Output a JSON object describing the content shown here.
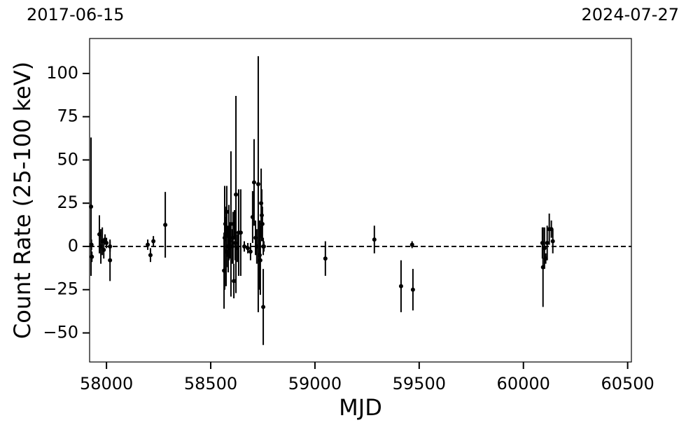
{
  "chart_data": {
    "type": "errorbar",
    "annotations": [
      "2017-06-15",
      "2024-07-27"
    ],
    "x_label": "MJD",
    "y_label": "Count Rate (25-100 keV)",
    "xlim": [
      57919,
      60518
    ],
    "ylim": [
      -66.8,
      120.2
    ],
    "xticks": [
      58000,
      58500,
      59000,
      59500,
      60000,
      60500
    ],
    "yticks": [
      {
        "value": -50,
        "label": "−50"
      },
      {
        "value": -25,
        "label": "−25"
      },
      0,
      25,
      50,
      75,
      100
    ],
    "reference_line": 0,
    "color": "#000000",
    "series": [
      {
        "name": "data",
        "x": [
          57926,
          57928,
          57930,
          57966,
          57973,
          57980,
          57987,
          57993,
          58000,
          58017,
          58017,
          58198,
          58211,
          58225,
          58282,
          58564,
          58567,
          58570,
          58574,
          58577,
          58581,
          58584,
          58587,
          58591,
          58597,
          58604,
          58607,
          58611,
          58614,
          58617,
          58621,
          58628,
          58634,
          58644,
          58661,
          58678,
          58691,
          58701,
          58708,
          58715,
          58721,
          58728,
          58735,
          58738,
          58742,
          58745,
          58748,
          58752,
          58752,
          58755,
          59050,
          59285,
          59413,
          59466,
          59470,
          60091,
          60094,
          60101,
          60107,
          60114,
          60124,
          60134,
          60141
        ],
        "values": [
          23,
          1,
          -6,
          7,
          0,
          3,
          -2,
          4,
          2,
          0,
          -8,
          1,
          -5,
          3,
          12.5,
          -14,
          5,
          13,
          -3,
          20,
          0,
          -5,
          8,
          3,
          13,
          0,
          5,
          -20,
          13,
          2,
          30,
          -1,
          8,
          8,
          0,
          -1,
          -3,
          17,
          37,
          5,
          0,
          36,
          -5,
          -8,
          25,
          18,
          13,
          -35,
          0,
          0,
          -7,
          4,
          -23,
          1,
          -25,
          2,
          -12,
          -1,
          -7,
          2,
          10,
          10,
          3
        ],
        "errors": [
          40,
          3,
          3,
          11,
          10,
          8,
          5,
          3,
          3,
          3,
          12,
          3,
          4,
          3,
          19,
          22,
          30,
          10,
          20,
          15,
          12,
          10,
          16,
          10,
          42,
          10,
          15,
          10,
          8,
          10,
          57,
          8,
          25,
          25,
          3,
          3,
          5,
          15,
          25,
          10,
          10,
          74,
          20,
          20,
          20,
          15,
          10,
          22,
          5,
          3,
          10,
          8,
          15,
          2,
          12,
          9,
          23,
          12,
          3,
          10,
          9,
          5,
          7
        ]
      }
    ]
  }
}
